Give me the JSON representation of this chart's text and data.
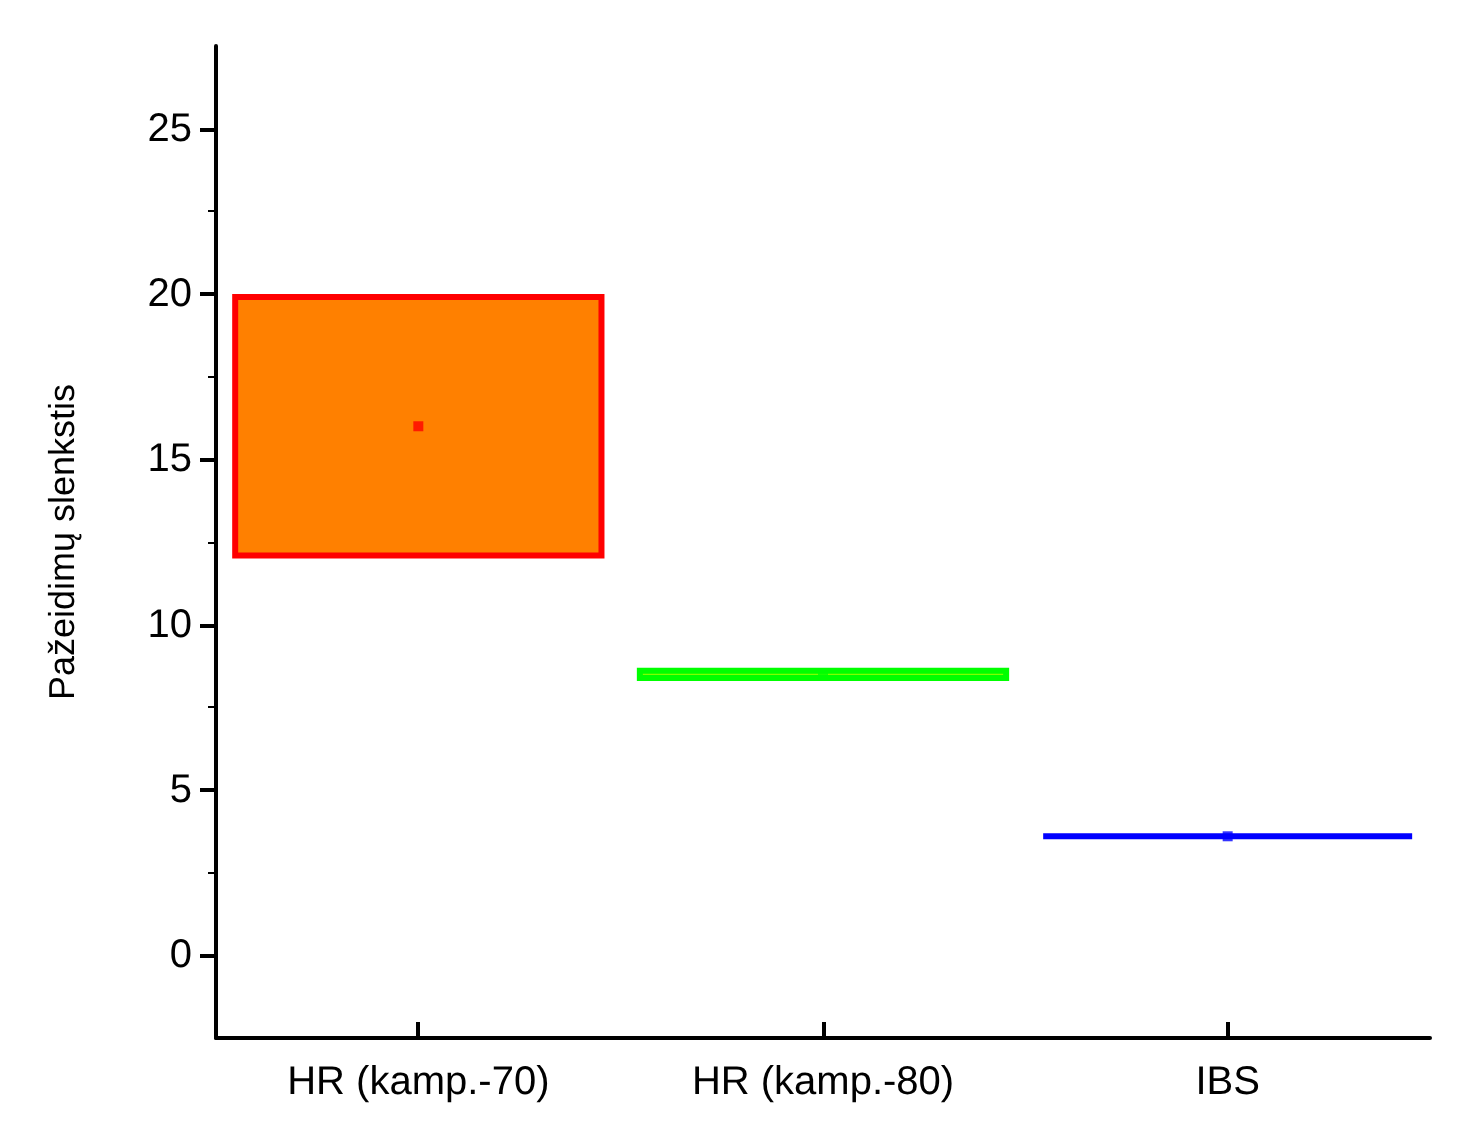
{
  "chart_data": {
    "type": "bar",
    "ylabel": "Pažeidimų slenkstis",
    "categories": [
      "HR (kamp.-70)",
      "HR (kamp.-80)",
      "IBS"
    ],
    "series": [
      {
        "base": [
          12,
          8.3,
          3.55
        ],
        "values": [
          8,
          0.4,
          0.1
        ],
        "colors": [
          "#ff8000",
          "#80ff00",
          "#0000ff"
        ]
      },
      {
        "type": "scatter",
        "x": [
          "HR (kamp.-70)",
          "HR (kamp.-80)",
          "IBS"
        ],
        "values": [
          16,
          8.5,
          3.6
        ],
        "colors": [
          "#ff0000",
          "#00ff00",
          "#0000ff"
        ],
        "marker": "square"
      }
    ],
    "ylim": [
      -2.5,
      27.5
    ],
    "yticks": [
      0,
      5,
      10,
      15,
      20,
      25
    ],
    "grid": false
  }
}
